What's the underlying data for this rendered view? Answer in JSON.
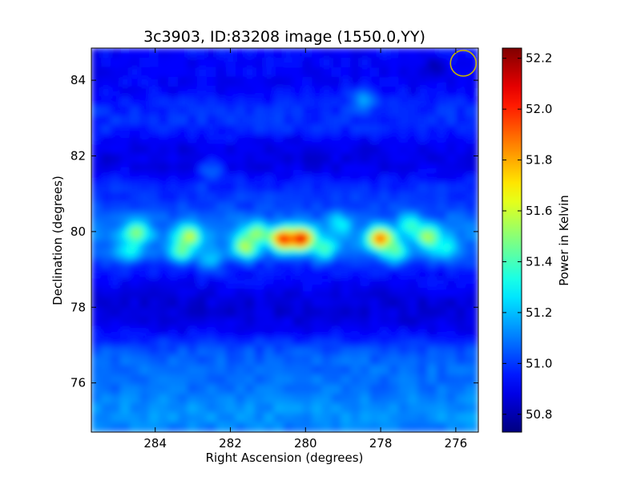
{
  "chart_data": {
    "type": "heatmap",
    "title": "3c3903, ID:83208 image (1550.0,YY)",
    "xlabel": "Right Ascension (degrees)",
    "ylabel": "Declination (degrees)",
    "xlim": [
      285.7,
      275.4
    ],
    "ylim": [
      74.7,
      84.85
    ],
    "x_ticks": [
      284,
      282,
      280,
      278,
      276
    ],
    "x_tick_labels": [
      "284",
      "282",
      "280",
      "278",
      "276"
    ],
    "y_ticks": [
      76,
      78,
      80,
      82,
      84
    ],
    "y_tick_labels": [
      "76",
      "78",
      "80",
      "82",
      "84"
    ],
    "colormap": "jet",
    "colorbar": {
      "label": "Power in Kelvin",
      "range": [
        50.73,
        52.24
      ],
      "ticks": [
        50.8,
        51.0,
        51.2,
        51.4,
        51.6,
        51.8,
        52.0,
        52.2
      ],
      "tick_labels": [
        "50.8",
        "51.0",
        "51.2",
        "51.4",
        "51.6",
        "51.8",
        "52.0",
        "52.2"
      ]
    },
    "background_level": 50.95,
    "bands": [
      {
        "dec_center": 84.1,
        "dec_width": 0.6,
        "value": 50.9
      },
      {
        "dec_center": 83.0,
        "dec_width": 0.5,
        "value": 51.0
      },
      {
        "dec_center": 82.0,
        "dec_width": 0.5,
        "value": 50.85
      },
      {
        "dec_center": 80.95,
        "dec_width": 0.45,
        "value": 51.0
      },
      {
        "dec_center": 79.8,
        "dec_width": 0.7,
        "value": 51.15
      },
      {
        "dec_center": 78.9,
        "dec_width": 0.45,
        "value": 50.92
      },
      {
        "dec_center": 77.85,
        "dec_width": 0.7,
        "value": 50.82
      },
      {
        "dec_center": 76.3,
        "dec_width": 0.9,
        "value": 51.12
      },
      {
        "dec_center": 75.2,
        "dec_width": 0.5,
        "value": 51.2
      }
    ],
    "sources": [
      {
        "ra": 284.5,
        "dec": 79.95,
        "value": 51.55
      },
      {
        "ra": 284.7,
        "dec": 79.5,
        "value": 51.35
      },
      {
        "ra": 283.1,
        "dec": 79.85,
        "value": 51.65
      },
      {
        "ra": 283.3,
        "dec": 79.5,
        "value": 51.45
      },
      {
        "ra": 282.5,
        "dec": 79.3,
        "value": 51.25
      },
      {
        "ra": 281.6,
        "dec": 79.6,
        "value": 51.6
      },
      {
        "ra": 281.3,
        "dec": 79.95,
        "value": 51.55
      },
      {
        "ra": 280.6,
        "dec": 79.8,
        "value": 52.05
      },
      {
        "ra": 280.1,
        "dec": 79.8,
        "value": 52.1
      },
      {
        "ra": 279.5,
        "dec": 79.55,
        "value": 51.4
      },
      {
        "ra": 278.0,
        "dec": 79.8,
        "value": 51.95
      },
      {
        "ra": 277.6,
        "dec": 79.5,
        "value": 51.45
      },
      {
        "ra": 277.2,
        "dec": 80.15,
        "value": 51.35
      },
      {
        "ra": 276.7,
        "dec": 79.85,
        "value": 51.6
      },
      {
        "ra": 276.3,
        "dec": 79.55,
        "value": 51.35
      },
      {
        "ra": 279.1,
        "dec": 80.2,
        "value": 51.3
      },
      {
        "ra": 278.5,
        "dec": 83.5,
        "value": 51.15
      },
      {
        "ra": 276.5,
        "dec": 84.3,
        "value": 50.8
      },
      {
        "ra": 282.5,
        "dec": 81.6,
        "value": 51.1
      }
    ],
    "beam_marker": {
      "ra": 275.8,
      "dec": 84.45,
      "shape": "circle",
      "color": "#c8b400"
    },
    "grid": false,
    "legend": "none"
  }
}
